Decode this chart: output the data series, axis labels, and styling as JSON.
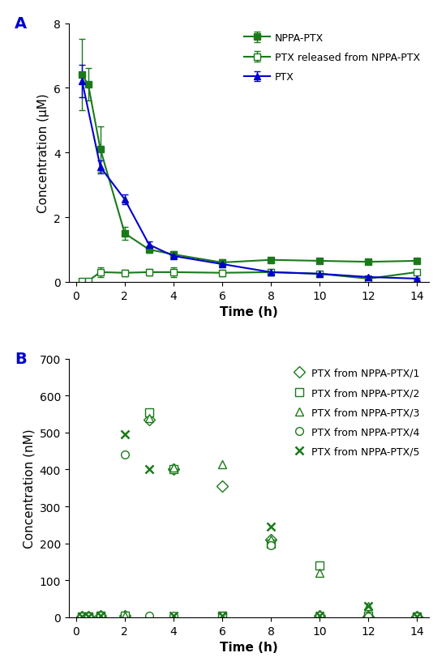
{
  "panel_A": {
    "time": [
      0.25,
      0.5,
      1,
      2,
      3,
      4,
      6,
      8,
      10,
      12,
      14
    ],
    "NPPA_PTX": [
      6.4,
      6.1,
      4.1,
      1.5,
      1.0,
      0.85,
      0.6,
      0.68,
      0.65,
      0.62,
      0.65
    ],
    "NPPA_PTX_err": [
      1.1,
      0.5,
      0.7,
      0.2,
      0.1,
      0.1,
      0.1,
      0.05,
      0.05,
      0.05,
      0.05
    ],
    "PTX_released": [
      0.02,
      0.03,
      0.3,
      0.28,
      0.3,
      0.3,
      0.28,
      0.3,
      0.25,
      0.1,
      0.3
    ],
    "PTX_released_err": [
      0.02,
      0.02,
      0.15,
      0.1,
      0.1,
      0.15,
      0.1,
      0.1,
      0.05,
      0.05,
      0.05
    ],
    "PTX_time": [
      0.25,
      1,
      2,
      3,
      4,
      6,
      8,
      10,
      12,
      14
    ],
    "PTX_vals": [
      6.2,
      3.55,
      2.55,
      1.15,
      0.8,
      0.55,
      0.3,
      0.25,
      0.15,
      0.1
    ],
    "PTX_err": [
      0.5,
      0.2,
      0.15,
      0.1,
      0.05,
      0.05,
      0.05,
      0.05,
      0.02,
      0.02
    ],
    "ylabel": "Concentration (μM)",
    "xlabel": "Time (h)",
    "ylim": [
      0,
      8
    ],
    "yticks": [
      0,
      2,
      4,
      6,
      8
    ],
    "xticks": [
      0,
      2,
      4,
      6,
      8,
      10,
      12,
      14
    ],
    "color_dark_green": "#1a7a1a",
    "color_blue": "#0000cd"
  },
  "panel_B": {
    "time": [
      0.25,
      0.5,
      1,
      2,
      3,
      4,
      6,
      8,
      10,
      12,
      14
    ],
    "series_1": [
      2,
      2,
      5,
      5,
      535,
      400,
      355,
      210,
      5,
      2,
      2
    ],
    "series_2": [
      2,
      2,
      5,
      5,
      555,
      400,
      5,
      200,
      140,
      5,
      2
    ],
    "series_3": [
      2,
      2,
      5,
      5,
      540,
      405,
      415,
      210,
      120,
      30,
      2
    ],
    "series_4": [
      2,
      2,
      5,
      440,
      5,
      5,
      5,
      195,
      5,
      2,
      2
    ],
    "series_5": [
      2,
      2,
      5,
      495,
      400,
      5,
      5,
      245,
      5,
      30,
      2
    ],
    "ylabel": "Concentration (nM)",
    "xlabel": "Time (h)",
    "ylim": [
      0,
      700
    ],
    "yticks": [
      0,
      100,
      200,
      300,
      400,
      500,
      600,
      700
    ],
    "xticks": [
      0,
      2,
      4,
      6,
      8,
      10,
      12,
      14
    ],
    "color": "#1a7a1a"
  },
  "label_color": "#0000cd",
  "green_dark": "#1a7a1a"
}
